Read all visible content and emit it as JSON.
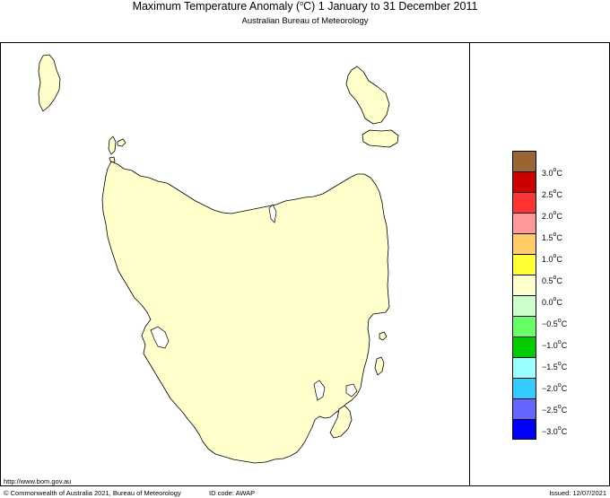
{
  "header": {
    "title_prefix": "Maximum Temperature Anomaly (",
    "title_degree": "o",
    "title_suffix": "C)  1 January to 31 December 2011",
    "subtitle": "Australian Bureau of Meteorology"
  },
  "map": {
    "region": "Tasmania",
    "fill_color": "#ffffcc"
  },
  "legend": {
    "unit_degree": "o",
    "unit_letter": "C",
    "colors": [
      "#996633",
      "#cc0000",
      "#ff3333",
      "#ff9999",
      "#ffcc66",
      "#ffff33",
      "#ffffcc",
      "#ccffcc",
      "#66ff66",
      "#00cc00",
      "#99ffff",
      "#33ccff",
      "#6666ff",
      "#0000ff"
    ],
    "labels": [
      "3.0",
      "2.5",
      "2.0",
      "1.5",
      "1.0",
      "0.5",
      "0.0",
      "−0.5",
      "−1.0",
      "−1.5",
      "−2.0",
      "−2.5",
      "−3.0"
    ]
  },
  "footer": {
    "url": "http://www.bom.gov.au",
    "copyright": "© Commonwealth of Australia 2021, Bureau of Meteorology",
    "id_code": "ID code: AWAP",
    "issued": "Issued: 12/07/2021"
  }
}
